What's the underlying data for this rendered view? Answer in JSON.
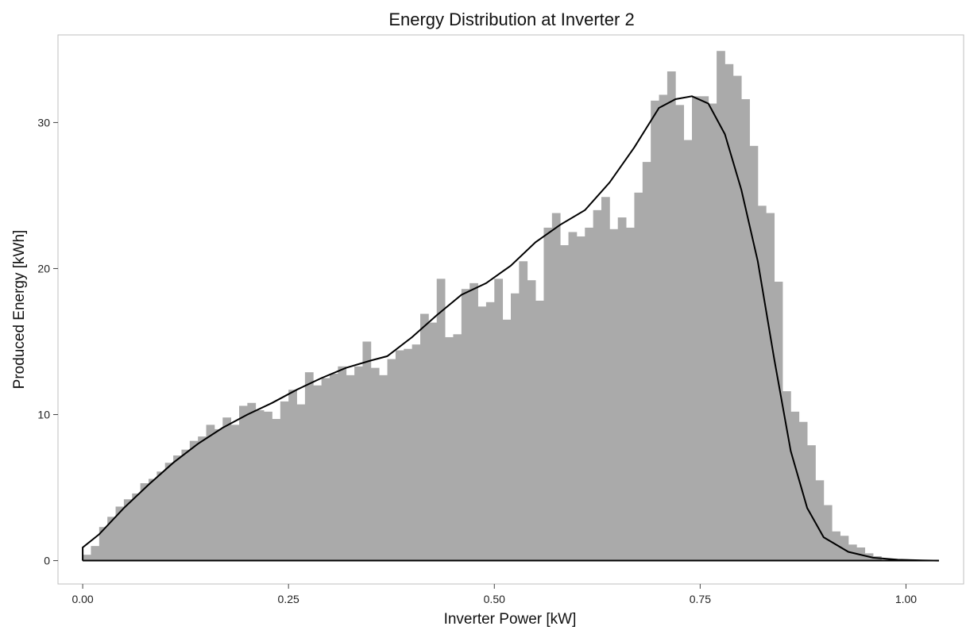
{
  "chart_data": {
    "type": "bar",
    "title": "Energy Distribution at Inverter  2",
    "xlabel": "Inverter Power [kW]",
    "ylabel": "Produced Energy [kWh]",
    "xlim": [
      -0.03,
      1.07
    ],
    "ylim": [
      -1.6,
      36
    ],
    "x_ticks": [
      0.0,
      0.25,
      0.5,
      0.75,
      1.0
    ],
    "x_tick_labels": [
      "0.00",
      "0.25",
      "0.50",
      "0.75",
      "1.00"
    ],
    "y_ticks": [
      0,
      10,
      20,
      30
    ],
    "y_tick_labels": [
      "0",
      "10",
      "20",
      "30"
    ],
    "grid": false,
    "bin_width": 0.01,
    "bins": {
      "x_start": [
        0.0,
        0.01,
        0.02,
        0.03,
        0.04,
        0.05,
        0.06,
        0.07,
        0.08,
        0.09,
        0.1,
        0.11,
        0.12,
        0.13,
        0.14,
        0.15,
        0.16,
        0.17,
        0.18,
        0.19,
        0.2,
        0.21,
        0.22,
        0.23,
        0.24,
        0.25,
        0.26,
        0.27,
        0.28,
        0.29,
        0.3,
        0.31,
        0.32,
        0.33,
        0.34,
        0.35,
        0.36,
        0.37,
        0.38,
        0.39,
        0.4,
        0.41,
        0.42,
        0.43,
        0.44,
        0.45,
        0.46,
        0.47,
        0.48,
        0.49,
        0.5,
        0.51,
        0.52,
        0.53,
        0.54,
        0.55,
        0.56,
        0.57,
        0.58,
        0.59,
        0.6,
        0.61,
        0.62,
        0.63,
        0.64,
        0.65,
        0.66,
        0.67,
        0.68,
        0.69,
        0.7,
        0.71,
        0.72,
        0.73,
        0.74,
        0.75,
        0.76,
        0.77,
        0.78,
        0.79,
        0.8,
        0.81,
        0.82,
        0.83,
        0.84,
        0.85,
        0.86,
        0.87,
        0.88,
        0.89,
        0.9,
        0.91,
        0.92,
        0.93,
        0.94,
        0.95,
        0.96
      ],
      "values": [
        0.4,
        1.0,
        2.3,
        3.0,
        3.7,
        4.2,
        4.6,
        5.3,
        5.6,
        6.1,
        6.7,
        7.2,
        7.6,
        8.2,
        8.5,
        9.3,
        9.0,
        9.8,
        9.3,
        10.6,
        10.8,
        10.3,
        10.2,
        9.7,
        10.9,
        11.7,
        10.7,
        12.9,
        12.0,
        12.5,
        12.8,
        13.3,
        12.7,
        13.3,
        15.0,
        13.2,
        12.7,
        13.8,
        14.4,
        14.5,
        14.8,
        16.9,
        16.3,
        19.3,
        15.3,
        15.5,
        18.6,
        19.0,
        17.4,
        17.7,
        19.3,
        16.5,
        18.3,
        20.5,
        19.2,
        17.8,
        22.8,
        23.8,
        21.6,
        22.5,
        22.2,
        22.8,
        24.0,
        24.9,
        22.7,
        23.5,
        22.8,
        25.2,
        27.3,
        31.5,
        31.9,
        33.5,
        31.2,
        28.8,
        31.8,
        31.8,
        31.3,
        34.9,
        34.0,
        33.2,
        31.6,
        28.4,
        24.3,
        23.8,
        19.1,
        11.6,
        10.2,
        9.5,
        7.9,
        5.5,
        3.8,
        2.0,
        1.7,
        1.1,
        0.9,
        0.5,
        0.3
      ]
    },
    "series": [
      {
        "type": "line",
        "x": [
          0.0,
          0.0,
          0.02,
          0.05,
          0.08,
          0.11,
          0.14,
          0.17,
          0.2,
          0.23,
          0.26,
          0.29,
          0.32,
          0.35,
          0.37,
          0.4,
          0.43,
          0.46,
          0.49,
          0.52,
          0.55,
          0.58,
          0.61,
          0.64,
          0.67,
          0.7,
          0.72,
          0.74,
          0.76,
          0.78,
          0.8,
          0.82,
          0.84,
          0.86,
          0.88,
          0.9,
          0.93,
          0.96,
          0.99,
          1.02,
          1.04
        ],
        "y": [
          0.0,
          0.9,
          1.8,
          3.6,
          5.2,
          6.7,
          8.0,
          9.1,
          10.0,
          10.8,
          11.7,
          12.5,
          13.2,
          13.7,
          14.0,
          15.3,
          16.8,
          18.2,
          19.0,
          20.2,
          21.8,
          23.0,
          24.0,
          25.9,
          28.3,
          31.0,
          31.6,
          31.8,
          31.3,
          29.2,
          25.4,
          20.5,
          13.8,
          7.5,
          3.6,
          1.6,
          0.6,
          0.2,
          0.06,
          0.02,
          0.0
        ]
      }
    ]
  }
}
